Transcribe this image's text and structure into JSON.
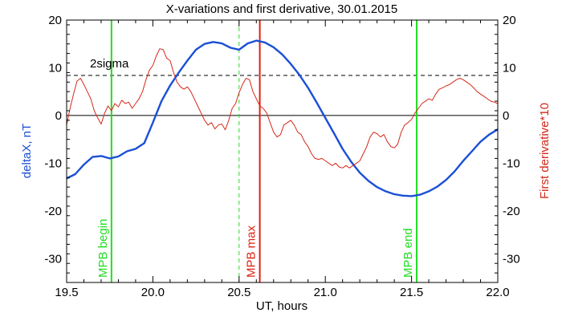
{
  "chart_data": {
    "type": "line",
    "title": "X-variations and first derivative, 30.01.2015",
    "xlabel": "UT, hours",
    "ylabel_left": "deltaX, nT",
    "ylabel_right": "First derivative*10",
    "xlim": [
      19.5,
      22.0
    ],
    "ylim": [
      -35,
      20
    ],
    "x_ticks": [
      "19.5",
      "20.0",
      "20.5",
      "21.0",
      "21.5",
      "22.0"
    ],
    "y_ticks": [
      "20",
      "10",
      "0",
      "-10",
      "-20",
      "-30"
    ],
    "colors": {
      "deltaX": "#1a4fd6",
      "derivative": "#d42a1a",
      "mpb_begin_end": "#22dd22",
      "mpb_max": "#e02010",
      "threshold": "#000000"
    },
    "threshold": {
      "label": "2sigma",
      "value": 8.4
    },
    "zero_line": 0,
    "vlines": [
      {
        "x": 19.76,
        "label": "MPB begin",
        "color": "#22dd22",
        "style": "solid"
      },
      {
        "x": 20.5,
        "label": "",
        "color": "#22dd22",
        "style": "dashed"
      },
      {
        "x": 20.62,
        "label": "MPB max",
        "color": "#e02010",
        "style": "solid"
      },
      {
        "x": 21.53,
        "label": "MPB end",
        "color": "#22dd22",
        "style": "solid"
      }
    ],
    "series": [
      {
        "key": "deltaX",
        "x": [
          19.5,
          19.55,
          19.6,
          19.65,
          19.7,
          19.75,
          19.8,
          19.85,
          19.9,
          19.95,
          20.0,
          20.05,
          20.1,
          20.15,
          20.2,
          20.25,
          20.3,
          20.35,
          20.4,
          20.45,
          20.5,
          20.55,
          20.6,
          20.65,
          20.7,
          20.75,
          20.8,
          20.85,
          20.9,
          20.95,
          21.0,
          21.05,
          21.1,
          21.15,
          21.2,
          21.25,
          21.3,
          21.35,
          21.4,
          21.45,
          21.5,
          21.55,
          21.6,
          21.65,
          21.7,
          21.75,
          21.8,
          21.85,
          21.9,
          21.95,
          22.0
        ],
        "values": [
          -13.2,
          -12.3,
          -10.3,
          -8.7,
          -8.5,
          -9.0,
          -8.6,
          -7.5,
          -7.0,
          -5.8,
          -1.5,
          3.0,
          6.3,
          9.0,
          11.5,
          13.8,
          15.0,
          15.4,
          15.1,
          14.2,
          13.8,
          15.1,
          15.7,
          15.3,
          14.3,
          12.8,
          10.8,
          8.5,
          5.8,
          2.7,
          -0.5,
          -3.7,
          -7.0,
          -9.7,
          -12.0,
          -13.7,
          -15.0,
          -15.9,
          -16.5,
          -16.8,
          -16.9,
          -16.6,
          -15.9,
          -14.9,
          -13.5,
          -11.7,
          -9.5,
          -7.5,
          -5.5,
          -4.0,
          -2.9
        ]
      },
      {
        "key": "derivative",
        "x": [
          19.5,
          19.52,
          19.54,
          19.56,
          19.58,
          19.6,
          19.62,
          19.64,
          19.66,
          19.68,
          19.7,
          19.72,
          19.74,
          19.76,
          19.78,
          19.8,
          19.82,
          19.84,
          19.86,
          19.88,
          19.9,
          19.92,
          19.94,
          19.96,
          19.98,
          20.0,
          20.02,
          20.04,
          20.06,
          20.08,
          20.1,
          20.12,
          20.14,
          20.16,
          20.18,
          20.2,
          20.22,
          20.24,
          20.26,
          20.28,
          20.3,
          20.32,
          20.34,
          20.36,
          20.38,
          20.4,
          20.42,
          20.44,
          20.46,
          20.48,
          20.5,
          20.52,
          20.54,
          20.56,
          20.58,
          20.6,
          20.62,
          20.64,
          20.66,
          20.68,
          20.7,
          20.72,
          20.74,
          20.76,
          20.78,
          20.8,
          20.82,
          20.84,
          20.86,
          20.88,
          20.9,
          20.92,
          20.94,
          20.96,
          20.98,
          21.0,
          21.02,
          21.04,
          21.06,
          21.08,
          21.1,
          21.12,
          21.14,
          21.16,
          21.18,
          21.2,
          21.22,
          21.24,
          21.26,
          21.28,
          21.3,
          21.32,
          21.34,
          21.36,
          21.38,
          21.4,
          21.42,
          21.44,
          21.46,
          21.48,
          21.5,
          21.52,
          21.54,
          21.56,
          21.58,
          21.6,
          21.62,
          21.64,
          21.66,
          21.68,
          21.7,
          21.72,
          21.74,
          21.76,
          21.78,
          21.8,
          21.82,
          21.84,
          21.86,
          21.88,
          21.9,
          21.92,
          21.94,
          21.96,
          21.98,
          22.0
        ],
        "values": [
          -2.0,
          1.5,
          4.5,
          7.2,
          7.8,
          6.5,
          5.0,
          3.5,
          1.0,
          -0.5,
          -1.8,
          0.5,
          2.0,
          1.0,
          2.5,
          1.8,
          3.2,
          2.5,
          2.8,
          1.5,
          2.5,
          3.5,
          5.0,
          7.5,
          9.5,
          10.5,
          12.5,
          14.0,
          13.8,
          12.0,
          11.5,
          9.0,
          7.0,
          6.0,
          5.5,
          6.0,
          5.0,
          3.5,
          2.0,
          0.5,
          -1.0,
          -2.0,
          -1.5,
          -2.8,
          -2.0,
          -1.8,
          -3.0,
          -1.0,
          1.5,
          2.5,
          4.8,
          6.5,
          7.8,
          7.5,
          5.0,
          3.5,
          2.0,
          1.5,
          0.5,
          -1.5,
          -3.5,
          -4.5,
          -4.0,
          -2.0,
          -1.5,
          -1.0,
          -2.0,
          -3.5,
          -4.0,
          -5.5,
          -6.5,
          -8.0,
          -9.0,
          -9.2,
          -9.0,
          -9.5,
          -10.0,
          -10.5,
          -10.0,
          -10.8,
          -11.0,
          -10.5,
          -11.0,
          -10.5,
          -10.0,
          -9.5,
          -8.0,
          -6.5,
          -4.5,
          -3.5,
          -3.8,
          -4.5,
          -4.0,
          -5.5,
          -6.5,
          -6.8,
          -6.0,
          -3.5,
          -2.0,
          -1.5,
          -0.8,
          0.5,
          1.5,
          2.5,
          3.0,
          3.5,
          3.2,
          4.5,
          5.5,
          5.8,
          6.2,
          6.5,
          7.0,
          7.5,
          7.8,
          7.5,
          7.0,
          6.5,
          5.8,
          5.0,
          4.5,
          4.0,
          3.5,
          3.0,
          2.8,
          2.5
        ]
      }
    ]
  }
}
